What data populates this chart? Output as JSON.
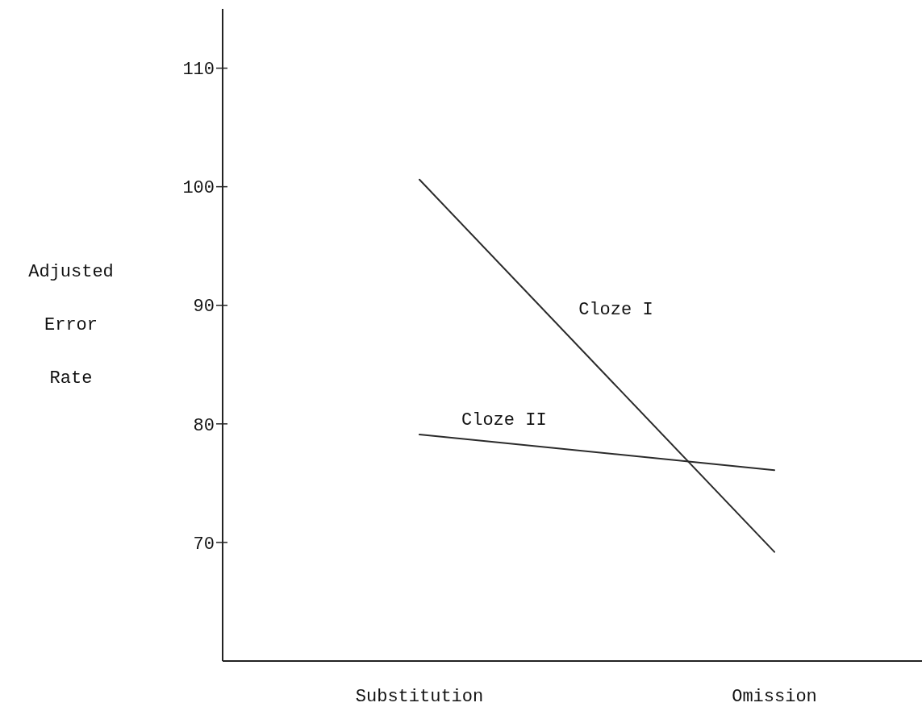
{
  "chart_data": {
    "type": "line",
    "ylabel": "Adjusted Error Rate",
    "categories": [
      "Substitution",
      "Omission"
    ],
    "ylim": [
      60,
      115
    ],
    "yticks": [
      70,
      80,
      90,
      100,
      110
    ],
    "series": [
      {
        "name": "Cloze I",
        "color": "#2b2b2b",
        "values": [
          100.6,
          69.2
        ]
      },
      {
        "name": "Cloze II",
        "color": "#2b2b2b",
        "values": [
          79.1,
          76.1
        ]
      }
    ]
  }
}
